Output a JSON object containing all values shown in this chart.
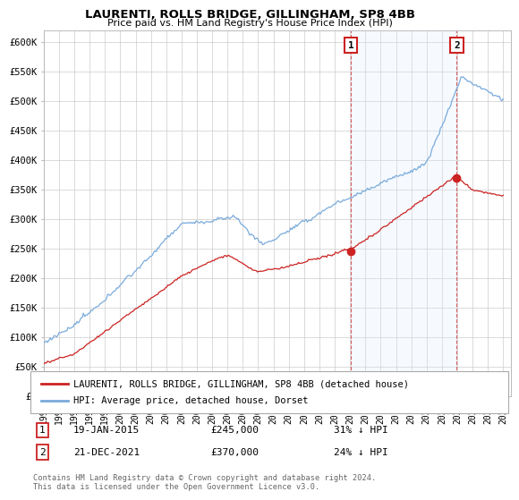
{
  "title": "LAURENTI, ROLLS BRIDGE, GILLINGHAM, SP8 4BB",
  "subtitle": "Price paid vs. HM Land Registry's House Price Index (HPI)",
  "ylabel_ticks": [
    "£0",
    "£50K",
    "£100K",
    "£150K",
    "£200K",
    "£250K",
    "£300K",
    "£350K",
    "£400K",
    "£450K",
    "£500K",
    "£550K",
    "£600K"
  ],
  "ytick_values": [
    0,
    50000,
    100000,
    150000,
    200000,
    250000,
    300000,
    350000,
    400000,
    450000,
    500000,
    550000,
    600000
  ],
  "ylim": [
    0,
    620000
  ],
  "xlim_start": 1995.0,
  "xlim_end": 2025.5,
  "hpi_color": "#7aabdc",
  "price_color": "#cc2222",
  "shade_color": "#ddeeff",
  "marker1_date": 2015.05,
  "marker1_price": 245000,
  "marker2_date": 2021.97,
  "marker2_price": 370000,
  "point1_label": "19-JAN-2015",
  "point1_price": "£245,000",
  "point1_note": "31% ↓ HPI",
  "point2_label": "21-DEC-2021",
  "point2_price": "£370,000",
  "point2_note": "24% ↓ HPI",
  "legend_red_label": "LAURENTI, ROLLS BRIDGE, GILLINGHAM, SP8 4BB (detached house)",
  "legend_blue_label": "HPI: Average price, detached house, Dorset",
  "footer": "Contains HM Land Registry data © Crown copyright and database right 2024.\nThis data is licensed under the Open Government Licence v3.0.",
  "background_color": "#ffffff",
  "grid_color": "#cccccc",
  "xtick_years": [
    1995,
    1996,
    1997,
    1998,
    1999,
    2000,
    2001,
    2002,
    2003,
    2004,
    2005,
    2006,
    2007,
    2008,
    2009,
    2010,
    2011,
    2012,
    2013,
    2014,
    2015,
    2016,
    2017,
    2018,
    2019,
    2020,
    2021,
    2022,
    2023,
    2024,
    2025
  ]
}
